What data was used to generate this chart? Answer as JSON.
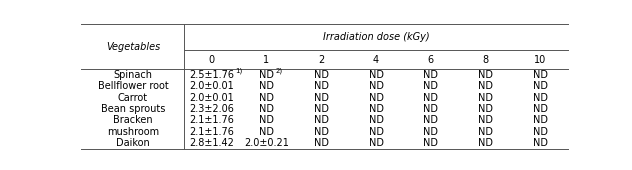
{
  "col_header_row1": "Irradiation dose (kGy)",
  "col_header_row2": [
    "0",
    "1",
    "2",
    "4",
    "6",
    "8",
    "10"
  ],
  "row_header": "Vegetables",
  "rows": [
    {
      "name": "Spinach",
      "values": [
        "2.5±1.76",
        "ND",
        "ND",
        "ND",
        "ND",
        "ND",
        "ND"
      ],
      "sup0": "1)",
      "sup1": "2)"
    },
    {
      "name": "Bellflower root",
      "values": [
        "2.0±0.01",
        "ND",
        "ND",
        "ND",
        "ND",
        "ND",
        "ND"
      ],
      "sup0": null,
      "sup1": null
    },
    {
      "name": "Carrot",
      "values": [
        "2.0±0.01",
        "ND",
        "ND",
        "ND",
        "ND",
        "ND",
        "ND"
      ],
      "sup0": null,
      "sup1": null
    },
    {
      "name": "Bean sprouts",
      "values": [
        "2.3±2.06",
        "ND",
        "ND",
        "ND",
        "ND",
        "ND",
        "ND"
      ],
      "sup0": null,
      "sup1": null
    },
    {
      "name": "Bracken",
      "values": [
        "2.1±1.76",
        "ND",
        "ND",
        "ND",
        "ND",
        "ND",
        "ND"
      ],
      "sup0": null,
      "sup1": null
    },
    {
      "name": "mushroom",
      "values": [
        "2.1±1.76",
        "ND",
        "ND",
        "ND",
        "ND",
        "ND",
        "ND"
      ],
      "sup0": null,
      "sup1": null
    },
    {
      "name": "Daikon",
      "values": [
        "2.8±1.42",
        "2.0±0.21",
        "ND",
        "ND",
        "ND",
        "ND",
        "ND"
      ],
      "sup0": null,
      "sup1": null
    }
  ],
  "font_size": 7.0,
  "background_color": "#ffffff",
  "line_color": "#555555"
}
